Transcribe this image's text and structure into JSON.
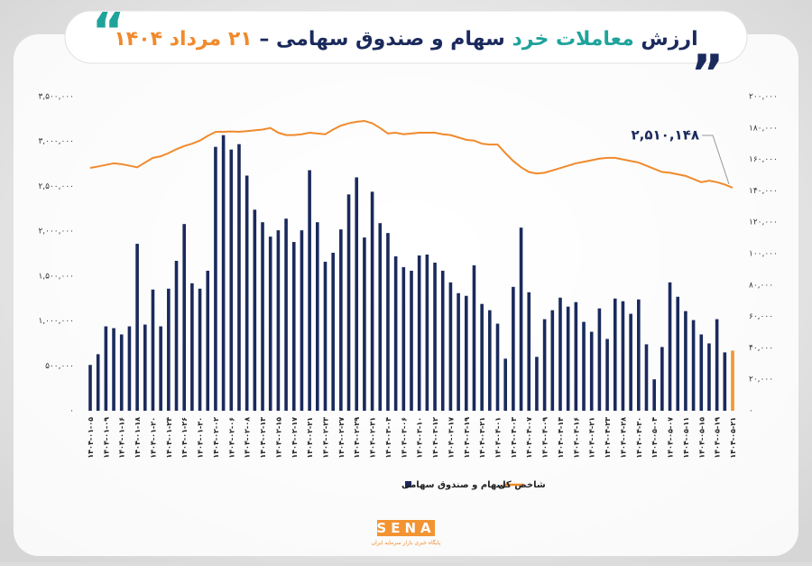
{
  "chart_data": {
    "type": "bar_line",
    "title": [
      "ارزش",
      "معاملات خرد",
      "سهام و صندوق سهامی",
      "–",
      "۲۱ مرداد ۱۴۰۴"
    ],
    "annotation": "۲,۵۱۰,۱۴۸",
    "categories": [
      "۱۴۰۴-۰۱-۰۵",
      null,
      "۱۴۰۴-۰۱-۰۹",
      null,
      "۱۴۰۴-۰۱-۱۶",
      null,
      "۱۴۰۴-۰۱-۱۸",
      null,
      "۱۴۰۴-۰۱-۲۰",
      null,
      "۱۴۰۴-۰۱-۲۴",
      null,
      "۱۴۰۴-۰۱-۲۶",
      null,
      "۱۴۰۴-۰۱-۳۰",
      null,
      "۱۴۰۴-۰۲-۰۲",
      null,
      "۱۴۰۴-۰۲-۰۶",
      null,
      "۱۴۰۴-۰۲-۰۸",
      null,
      "۱۴۰۴-۰۲-۱۳",
      null,
      "۱۴۰۴-۰۲-۱۵",
      null,
      "۱۴۰۴-۰۲-۱۷",
      null,
      "۱۴۰۴-۰۲-۲۱",
      null,
      "۱۴۰۴-۰۲-۲۳",
      null,
      "۱۴۰۴-۰۲-۲۷",
      null,
      "۱۴۰۴-۰۲-۲۹",
      null,
      "۱۴۰۴-۰۲-۳۱",
      null,
      "۱۴۰۴-۰۳-۰۴",
      null,
      "۱۴۰۴-۰۳-۰۶",
      null,
      "۱۴۰۴-۰۳-۱۰",
      null,
      "۱۴۰۴-۰۳-۱۲",
      null,
      "۱۴۰۴-۰۳-۱۷",
      null,
      "۱۴۰۴-۰۳-۱۹",
      null,
      "۱۴۰۴-۰۳-۲۱",
      null,
      "۱۴۰۴-۰۴-۰۱",
      null,
      "۱۴۰۴-۰۴-۰۳",
      null,
      "۱۴۰۴-۰۴-۰۷",
      null,
      "۱۴۰۴-۰۴-۰۹",
      null,
      "۱۴۰۴-۰۴-۱۴",
      null,
      "۱۴۰۴-۰۴-۱۶",
      null,
      "۱۴۰۴-۰۴-۲۱",
      null,
      "۱۴۰۴-۰۴-۲۳",
      null,
      "۱۴۰۴-۰۴-۲۸",
      null,
      "۱۴۰۴-۰۴-۳۰",
      null,
      "۱۴۰۴-۰۵-۰۴",
      null,
      "۱۴۰۴-۰۵-۰۷",
      null,
      "۱۴۰۴-۰۵-۱۱",
      null,
      "۱۴۰۴-۰۵-۱۵",
      null,
      "۱۴۰۴-۰۵-۱۹",
      null,
      "۱۴۰۴-۰۵-۲۱"
    ],
    "series": [
      {
        "name": "سهام و صندوق سهامی",
        "color": "#1b2a5c",
        "highlight_color": "#f39433",
        "values": [
          510000,
          630000,
          940000,
          920000,
          850000,
          940000,
          1860000,
          960000,
          1350000,
          940000,
          1360000,
          1670000,
          2080000,
          1420000,
          1360000,
          1560000,
          2940000,
          3070000,
          2910000,
          2970000,
          2620000,
          2240000,
          2100000,
          1940000,
          2010000,
          2140000,
          1880000,
          2010000,
          2680000,
          2100000,
          1660000,
          1760000,
          2020000,
          2410000,
          2600000,
          1930000,
          2440000,
          2090000,
          1980000,
          1720000,
          1600000,
          1560000,
          1730000,
          1740000,
          1650000,
          1560000,
          1430000,
          1310000,
          1280000,
          1620000,
          1190000,
          1120000,
          970000,
          580000,
          1380000,
          2040000,
          1320000,
          600000,
          1020000,
          1120000,
          1260000,
          1160000,
          1210000,
          990000,
          880000,
          1140000,
          800000,
          1250000,
          1220000,
          1080000,
          1240000,
          740000,
          350000,
          710000,
          1430000,
          1270000,
          1110000,
          1010000,
          850000,
          750000,
          1020000,
          650000,
          670000
        ]
      },
      {
        "name": "شاخص کل",
        "color": "#f08a2c",
        "axis": "y2",
        "values": [
          154600,
          155500,
          156500,
          157500,
          157000,
          156000,
          155000,
          158000,
          161000,
          162000,
          164000,
          166500,
          168500,
          170000,
          172000,
          175000,
          177500,
          177600,
          177800,
          177600,
          178000,
          178500,
          179000,
          180000,
          177000,
          175500,
          175500,
          176000,
          177000,
          176500,
          176000,
          179000,
          181500,
          183000,
          184000,
          184500,
          183000,
          180000,
          176500,
          177000,
          176000,
          176500,
          177000,
          177000,
          177000,
          176000,
          175500,
          174000,
          172500,
          172000,
          170000,
          169500,
          169500,
          164000,
          159000,
          155000,
          152000,
          151000,
          151500,
          153000,
          154500,
          156000,
          157500,
          158500,
          159500,
          160500,
          161000,
          161000,
          160000,
          159000,
          158000,
          156000,
          154000,
          152000,
          151500,
          150500,
          149500,
          147500,
          145500,
          146500,
          145500,
          144000,
          142000
        ]
      }
    ],
    "ylim": [
      0,
      3500000
    ],
    "yticks": [
      {
        "value": 0,
        "label": "۰"
      },
      {
        "value": 500000,
        "label": "۵۰۰,۰۰۰"
      },
      {
        "value": 1000000,
        "label": "۱,۰۰۰,۰۰۰"
      },
      {
        "value": 1500000,
        "label": "۱,۵۰۰,۰۰۰"
      },
      {
        "value": 2000000,
        "label": "۲,۰۰۰,۰۰۰"
      },
      {
        "value": 2500000,
        "label": "۲,۵۰۰,۰۰۰"
      },
      {
        "value": 3000000,
        "label": "۳,۰۰۰,۰۰۰"
      },
      {
        "value": 3500000,
        "label": "۳,۵۰۰,۰۰۰"
      }
    ],
    "y2lim": [
      0,
      200000
    ],
    "y2ticks": [
      {
        "value": 0,
        "label": "۰"
      },
      {
        "value": 20000,
        "label": "۲۰,۰۰۰"
      },
      {
        "value": 40000,
        "label": "۴۰,۰۰۰"
      },
      {
        "value": 60000,
        "label": "۶۰,۰۰۰"
      },
      {
        "value": 80000,
        "label": "۸۰,۰۰۰"
      },
      {
        "value": 100000,
        "label": "۱۰۰,۰۰۰"
      },
      {
        "value": 120000,
        "label": "۱۲۰,۰۰۰"
      },
      {
        "value": 140000,
        "label": "۱۴۰,۰۰۰"
      },
      {
        "value": 160000,
        "label": "۱۶۰,۰۰۰"
      },
      {
        "value": 180000,
        "label": "۱۸۰,۰۰۰"
      },
      {
        "value": 200000,
        "label": "۲۰۰,۰۰۰"
      }
    ],
    "grid": false,
    "legend": "bottom"
  },
  "logo": {
    "name": "SENA",
    "subtitle": "پایگاه خبری بازار سرمایه ایران"
  }
}
